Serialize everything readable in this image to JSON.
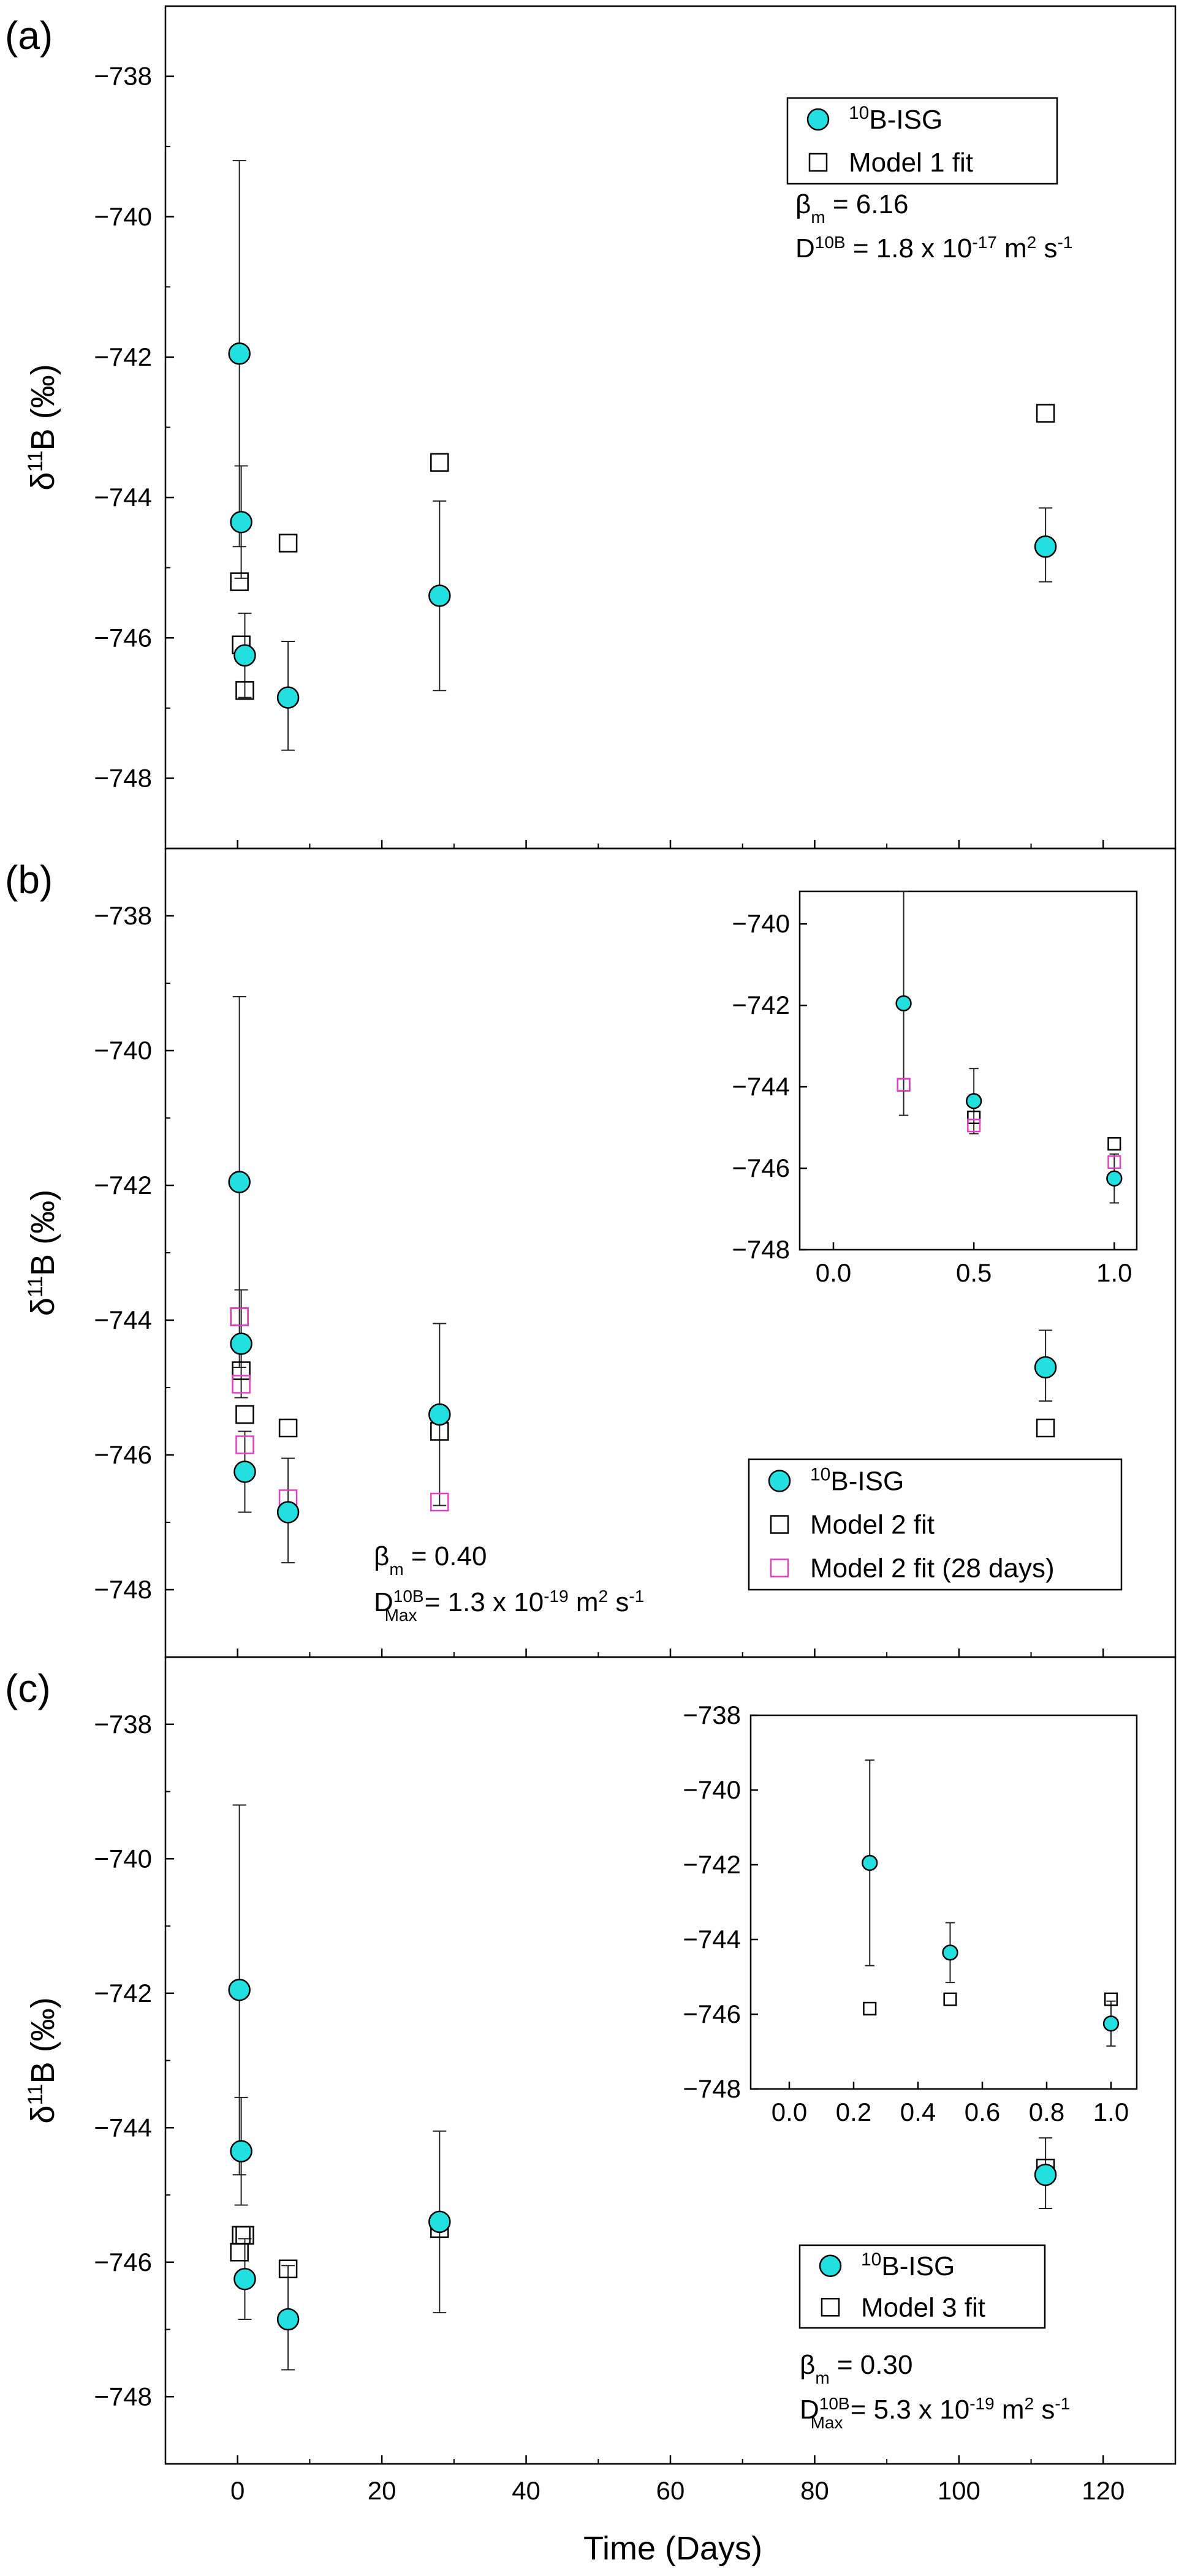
{
  "figure": {
    "x_axis_label": "Time (Days)",
    "x_ticks": [
      "0",
      "20",
      "40",
      "60",
      "80",
      "100",
      "120"
    ]
  },
  "chart_data": [
    {
      "type": "scatter",
      "panel": "(a)",
      "ylabel_main": "δ",
      "ylabel_sup": "11",
      "ylabel_rest": "B (‰)",
      "xlabel": "Time (Days)",
      "xlim": [
        -10,
        130
      ],
      "ylim": [
        -749,
        -737
      ],
      "y_ticks": [
        -738,
        -740,
        -742,
        -744,
        -746,
        -748
      ],
      "y_tick_labels": [
        "−738",
        "−740",
        "−742",
        "−744",
        "−746",
        "−748"
      ],
      "legend_position": "top-right",
      "series": [
        {
          "name": "10B-ISG",
          "name_sup": "10",
          "name_rest": "B-ISG",
          "marker": "circle",
          "color": "#22e0e0",
          "points": [
            {
              "x": 0.25,
              "y": -741.95,
              "err_low": -744.7,
              "err_high": -739.2
            },
            {
              "x": 0.5,
              "y": -744.35,
              "err_low": -745.15,
              "err_high": -743.55
            },
            {
              "x": 1,
              "y": -746.25,
              "err_low": -746.85,
              "err_high": -745.65
            },
            {
              "x": 7,
              "y": -746.85,
              "err_low": -747.6,
              "err_high": -746.05
            },
            {
              "x": 28,
              "y": -745.4,
              "err_low": -746.75,
              "err_high": -744.05
            },
            {
              "x": 112,
              "y": -744.7,
              "err_low": -745.2,
              "err_high": -744.15
            }
          ]
        },
        {
          "name": "Model 1 fit",
          "marker": "square",
          "color": "#000000",
          "points": [
            {
              "x": 0.25,
              "y": -745.2
            },
            {
              "x": 0.5,
              "y": -746.1
            },
            {
              "x": 1,
              "y": -746.75
            },
            {
              "x": 7,
              "y": -744.65
            },
            {
              "x": 28,
              "y": -743.5
            },
            {
              "x": 112,
              "y": -742.8
            }
          ]
        }
      ],
      "annotations": [
        {
          "base": "β",
          "sub": "m",
          "sup": "",
          "rest": " = 6.16"
        },
        {
          "base": "D",
          "sub": "",
          "sup": "10B",
          "rest": " = 1.8 x 10",
          "exp": "-17",
          "rest2": " m",
          "exp2": "2",
          "rest3": " s",
          "exp3": "-1"
        }
      ]
    },
    {
      "type": "scatter",
      "panel": "(b)",
      "ylabel_main": "δ",
      "ylabel_sup": "11",
      "ylabel_rest": "B (‰)",
      "xlim": [
        -10,
        130
      ],
      "ylim": [
        -749,
        -737
      ],
      "y_ticks": [
        -738,
        -740,
        -742,
        -744,
        -746,
        -748
      ],
      "y_tick_labels": [
        "−738",
        "−740",
        "−742",
        "−744",
        "−746",
        "−748"
      ],
      "legend_position": "bottom-right",
      "series": [
        {
          "name": "10B-ISG",
          "name_sup": "10",
          "name_rest": "B-ISG",
          "marker": "circle",
          "color": "#22e0e0",
          "points": [
            {
              "x": 0.25,
              "y": -741.95,
              "err_low": -744.7,
              "err_high": -739.2
            },
            {
              "x": 0.5,
              "y": -744.35,
              "err_low": -745.15,
              "err_high": -743.55
            },
            {
              "x": 1,
              "y": -746.25,
              "err_low": -746.85,
              "err_high": -745.65
            },
            {
              "x": 7,
              "y": -746.85,
              "err_low": -747.6,
              "err_high": -746.05
            },
            {
              "x": 28,
              "y": -745.4,
              "err_low": -746.75,
              "err_high": -744.05
            },
            {
              "x": 112,
              "y": -744.7,
              "err_low": -745.2,
              "err_high": -744.15
            }
          ]
        },
        {
          "name": "Model 2 fit",
          "marker": "square",
          "color": "#000000",
          "points": [
            {
              "x": 0.25,
              "y": -743.95
            },
            {
              "x": 0.5,
              "y": -744.75
            },
            {
              "x": 1,
              "y": -745.4
            },
            {
              "x": 7,
              "y": -745.6
            },
            {
              "x": 28,
              "y": -745.65
            },
            {
              "x": 112,
              "y": -745.6
            }
          ]
        },
        {
          "name": "Model 2 fit (28 days)",
          "marker": "square",
          "color": "#e040c0",
          "points": [
            {
              "x": 0.25,
              "y": -743.95
            },
            {
              "x": 0.5,
              "y": -744.95
            },
            {
              "x": 1,
              "y": -745.85
            },
            {
              "x": 7,
              "y": -746.65
            },
            {
              "x": 28,
              "y": -746.7
            }
          ]
        }
      ],
      "annotations": [
        {
          "base": "β",
          "sub": "m",
          "sup": "",
          "rest": " = 0.40"
        },
        {
          "base": "D",
          "sub": "Max",
          "sup": "10B",
          "rest": " = 1.3 x 10",
          "exp": "-19",
          "rest2": " m",
          "exp2": "2",
          "rest3": " s",
          "exp3": "-1"
        }
      ],
      "inset": {
        "xlim": [
          -0.12,
          1.08
        ],
        "ylim": [
          -748,
          -739.2
        ],
        "x_ticks": [
          0.0,
          0.5,
          1.0
        ],
        "x_tick_labels": [
          "0.0",
          "0.5",
          "1.0"
        ],
        "y_ticks": [
          -740,
          -742,
          -744,
          -746,
          -748
        ],
        "y_tick_labels": [
          "−740",
          "−742",
          "−744",
          "−746",
          "−748"
        ]
      }
    },
    {
      "type": "scatter",
      "panel": "(c)",
      "ylabel_main": "δ",
      "ylabel_sup": "11",
      "ylabel_rest": "B (‰)",
      "xlim": [
        -10,
        130
      ],
      "ylim": [
        -749,
        -737
      ],
      "y_ticks": [
        -738,
        -740,
        -742,
        -744,
        -746,
        -748
      ],
      "y_tick_labels": [
        "−738",
        "−740",
        "−742",
        "−744",
        "−746",
        "−748"
      ],
      "legend_position": "bottom-right",
      "series": [
        {
          "name": "10B-ISG",
          "name_sup": "10",
          "name_rest": "B-ISG",
          "marker": "circle",
          "color": "#22e0e0",
          "points": [
            {
              "x": 0.25,
              "y": -741.95,
              "err_low": -744.7,
              "err_high": -739.2
            },
            {
              "x": 0.5,
              "y": -744.35,
              "err_low": -745.15,
              "err_high": -743.55
            },
            {
              "x": 1,
              "y": -746.25,
              "err_low": -746.85,
              "err_high": -745.65
            },
            {
              "x": 7,
              "y": -746.85,
              "err_low": -747.6,
              "err_high": -746.05
            },
            {
              "x": 28,
              "y": -745.4,
              "err_low": -746.75,
              "err_high": -744.05
            },
            {
              "x": 112,
              "y": -744.7,
              "err_low": -745.2,
              "err_high": -744.15
            }
          ]
        },
        {
          "name": "Model 3 fit",
          "marker": "square",
          "color": "#000000",
          "points": [
            {
              "x": 0.25,
              "y": -745.85
            },
            {
              "x": 0.5,
              "y": -745.6
            },
            {
              "x": 1,
              "y": -745.6
            },
            {
              "x": 7,
              "y": -746.1
            },
            {
              "x": 28,
              "y": -745.5
            },
            {
              "x": 112,
              "y": -744.6
            }
          ]
        }
      ],
      "annotations": [
        {
          "base": "β",
          "sub": "m",
          "sup": "",
          "rest": " = 0.30"
        },
        {
          "base": "D",
          "sub": "Max",
          "sup": "10B",
          "rest": " = 5.3 x 10",
          "exp": "-19",
          "rest2": " m",
          "exp2": "2",
          "rest3": " s",
          "exp3": "-1"
        }
      ],
      "inset": {
        "xlim": [
          -0.12,
          1.08
        ],
        "ylim": [
          -748,
          -738
        ],
        "x_ticks": [
          0.0,
          0.2,
          0.4,
          0.6,
          0.8,
          1.0
        ],
        "x_tick_labels": [
          "0.0",
          "0.2",
          "0.4",
          "0.6",
          "0.8",
          "1.0"
        ],
        "y_ticks": [
          -738,
          -740,
          -742,
          -744,
          -746,
          -748
        ],
        "y_tick_labels": [
          "−738",
          "−740",
          "−742",
          "−744",
          "−746",
          "−748"
        ]
      }
    }
  ]
}
